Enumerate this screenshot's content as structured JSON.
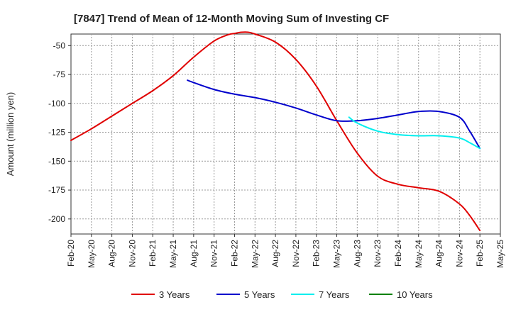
{
  "chart_data": {
    "type": "line",
    "title": "[7847]  Trend of Mean of 12-Month Moving Sum of Investing CF",
    "xlabel": "",
    "ylabel": "Amount (million yen)",
    "ylim": [
      -213,
      -40
    ],
    "yticks": [
      -50,
      -75,
      -100,
      -125,
      -150,
      -175,
      -200
    ],
    "categories": [
      "Feb-20",
      "May-20",
      "Aug-20",
      "Nov-20",
      "Feb-21",
      "May-21",
      "Aug-21",
      "Nov-21",
      "Feb-22",
      "May-22",
      "Aug-22",
      "Nov-22",
      "Feb-23",
      "May-23",
      "Aug-23",
      "Nov-23",
      "Feb-24",
      "May-24",
      "Aug-24",
      "Nov-24",
      "Feb-25",
      "May-25"
    ],
    "grid": true,
    "legend_position": "bottom",
    "series": [
      {
        "name": "3 Years",
        "color": "#e00000",
        "x": [
          0,
          1,
          2,
          3,
          4,
          5,
          6,
          7,
          7.7,
          8,
          8.33,
          8.67,
          9,
          10,
          11,
          12,
          13,
          14,
          15,
          16,
          17,
          18,
          19,
          19.5,
          20
        ],
        "values": [
          -132,
          -122,
          -111,
          -100,
          -89,
          -76,
          -60,
          -46,
          -40.5,
          -39.5,
          -38.5,
          -38.5,
          -40,
          -47,
          -62,
          -85,
          -115,
          -143,
          -163,
          -170,
          -173,
          -176,
          -187,
          -197,
          -210
        ]
      },
      {
        "name": "5 Years",
        "color": "#0000cc",
        "x": [
          5.7,
          6,
          7,
          8,
          9,
          10,
          11,
          12,
          13,
          14,
          15,
          16,
          17,
          18,
          19,
          19.5,
          20
        ],
        "values": [
          -80,
          -82,
          -88,
          -92,
          -95,
          -99,
          -104,
          -110,
          -115,
          -115,
          -113,
          -110,
          -107,
          -107,
          -112,
          -124,
          -139
        ]
      },
      {
        "name": "7 Years",
        "color": "#00eeee",
        "x": [
          13.6,
          14,
          15,
          16,
          17,
          18,
          19,
          19.5,
          20
        ],
        "values": [
          -112,
          -117,
          -124,
          -127,
          -128,
          -128,
          -130,
          -134,
          -139
        ]
      },
      {
        "name": "10 Years",
        "color": "#008000",
        "x": [],
        "values": []
      }
    ]
  }
}
